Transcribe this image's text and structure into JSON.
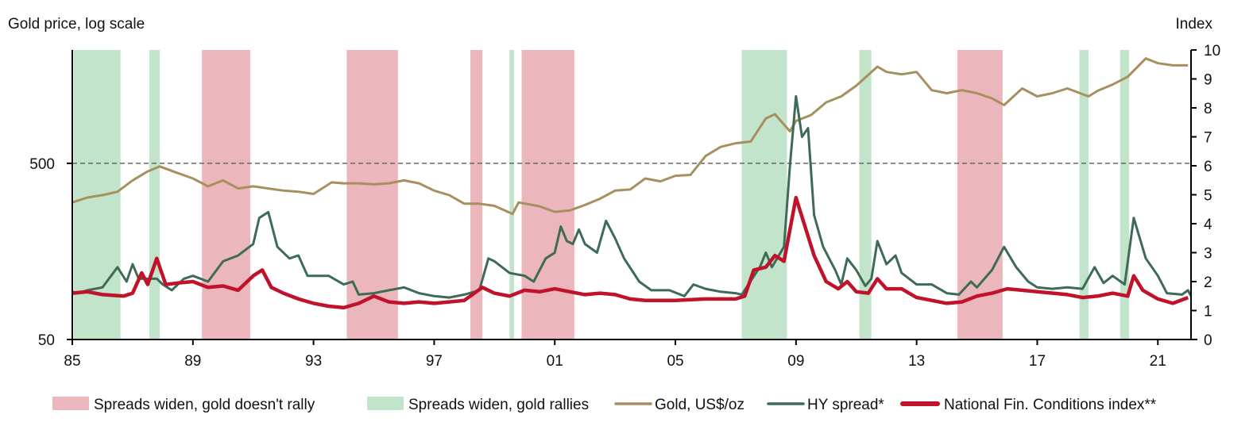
{
  "chart_data": {
    "type": "line",
    "left_axis_title": "Gold price, log scale",
    "right_axis_title": "Index",
    "left_axis": {
      "scale": "log",
      "ylim": [
        50,
        2200
      ],
      "ticks": [
        50,
        500
      ],
      "tick_labels": [
        "50",
        "500"
      ]
    },
    "right_axis": {
      "scale": "linear",
      "ylim": [
        0,
        10
      ],
      "ticks": [
        0,
        1,
        2,
        3,
        4,
        5,
        6,
        7,
        8,
        9,
        10
      ],
      "tick_labels": [
        "0",
        "1",
        "2",
        "3",
        "4",
        "5",
        "6",
        "7",
        "8",
        "9",
        "10"
      ]
    },
    "xlim": [
      1985,
      2022.1
    ],
    "x_ticks": [
      1985,
      1989,
      1993,
      1997,
      2001,
      2005,
      2009,
      2013,
      2017,
      2021
    ],
    "x_tick_labels": [
      "85",
      "89",
      "93",
      "97",
      "01",
      "05",
      "09",
      "13",
      "17",
      "21"
    ],
    "reference_line": {
      "axis": "left",
      "value": 500,
      "style": "dashed",
      "color": "#666666"
    },
    "grid": false,
    "legend_placement": "bottom",
    "bands": [
      {
        "name": "Spreads widen, gold doesn't rally",
        "color": "#EBB7BC",
        "ranges": [
          [
            1989.3,
            1990.9
          ],
          [
            1994.1,
            1995.8
          ],
          [
            1998.2,
            1998.6
          ],
          [
            1999.9,
            2001.65
          ],
          [
            2014.35,
            2015.85
          ]
        ]
      },
      {
        "name": "Spreads widen, gold rallies",
        "color": "#C2E4CB",
        "ranges": [
          [
            1985.05,
            1986.6
          ],
          [
            1987.55,
            1987.9
          ],
          [
            1999.5,
            1999.65
          ],
          [
            2007.2,
            2008.7
          ],
          [
            2011.1,
            2011.5
          ],
          [
            2018.4,
            2018.7
          ],
          [
            2019.75,
            2020.05
          ]
        ]
      }
    ],
    "series": [
      {
        "name": "Gold, US$/oz",
        "axis": "left",
        "color": "#A69060",
        "x": [
          1985.0,
          1985.5,
          1986.0,
          1986.5,
          1987.0,
          1987.5,
          1987.9,
          1988.5,
          1989.0,
          1989.5,
          1990.0,
          1990.5,
          1991.0,
          1991.5,
          1992.0,
          1992.5,
          1993.0,
          1993.6,
          1994.0,
          1994.5,
          1995.0,
          1995.5,
          1996.0,
          1996.5,
          1997.0,
          1997.5,
          1998.0,
          1998.5,
          1999.0,
          1999.6,
          1999.8,
          2000.5,
          2001.0,
          2001.5,
          2002.0,
          2002.5,
          2003.0,
          2003.5,
          2004.0,
          2004.5,
          2005.0,
          2005.5,
          2006.0,
          2006.5,
          2007.0,
          2007.5,
          2008.0,
          2008.3,
          2008.8,
          2009.0,
          2009.5,
          2010.0,
          2010.5,
          2011.0,
          2011.7,
          2012.0,
          2012.5,
          2013.0,
          2013.5,
          2014.0,
          2014.5,
          2015.0,
          2015.5,
          2015.9,
          2016.5,
          2017.0,
          2017.5,
          2018.0,
          2018.7,
          2019.0,
          2019.5,
          2020.0,
          2020.6,
          2021.0,
          2021.5,
          2022.0
        ],
        "values": [
          300,
          320,
          330,
          345,
          400,
          450,
          480,
          440,
          410,
          370,
          400,
          360,
          370,
          360,
          350,
          345,
          335,
          390,
          385,
          385,
          380,
          385,
          400,
          385,
          350,
          330,
          295,
          295,
          287,
          258,
          300,
          285,
          265,
          270,
          290,
          315,
          350,
          355,
          410,
          395,
          425,
          430,
          550,
          620,
          650,
          665,
          900,
          950,
          760,
          870,
          940,
          1110,
          1200,
          1380,
          1770,
          1650,
          1600,
          1650,
          1300,
          1250,
          1300,
          1250,
          1170,
          1070,
          1330,
          1200,
          1250,
          1330,
          1200,
          1290,
          1400,
          1550,
          1970,
          1850,
          1800,
          1800
        ]
      },
      {
        "name": "HY spread*",
        "axis": "right",
        "color": "#3E6B58",
        "x": [
          1985.0,
          1985.2,
          1985.5,
          1986.0,
          1986.5,
          1986.8,
          1987.0,
          1987.2,
          1987.8,
          1988.0,
          1988.3,
          1988.7,
          1989.0,
          1989.5,
          1990.0,
          1990.5,
          1991.0,
          1991.2,
          1991.5,
          1991.8,
          1992.2,
          1992.5,
          1992.8,
          1993.5,
          1994.0,
          1994.3,
          1994.5,
          1995.0,
          1995.5,
          1996.0,
          1996.5,
          1997.0,
          1997.5,
          1998.0,
          1998.5,
          1998.8,
          1999.0,
          1999.5,
          2000.0,
          2000.3,
          2000.7,
          2001.0,
          2001.2,
          2001.4,
          2001.6,
          2001.8,
          2002.0,
          2002.4,
          2002.7,
          2003.0,
          2003.3,
          2003.8,
          2004.2,
          2004.8,
          2005.3,
          2005.6,
          2006.0,
          2006.5,
          2007.0,
          2007.2,
          2007.8,
          2008.0,
          2008.2,
          2008.6,
          2008.8,
          2009.0,
          2009.2,
          2009.4,
          2009.6,
          2009.9,
          2010.3,
          2010.5,
          2010.7,
          2011.0,
          2011.3,
          2011.5,
          2011.7,
          2012.0,
          2012.3,
          2012.5,
          2013.0,
          2013.5,
          2014.0,
          2014.4,
          2014.8,
          2015.0,
          2015.5,
          2015.9,
          2016.3,
          2016.7,
          2017.0,
          2017.5,
          2018.0,
          2018.5,
          2018.9,
          2019.2,
          2019.5,
          2019.9,
          2020.2,
          2020.6,
          2021.0,
          2021.3,
          2021.8,
          2022.0,
          2022.1
        ],
        "values": [
          1.65,
          1.6,
          1.7,
          1.8,
          2.5,
          2.0,
          2.6,
          2.1,
          2.1,
          1.9,
          1.7,
          2.1,
          2.2,
          2.0,
          2.7,
          2.9,
          3.3,
          4.2,
          4.4,
          3.2,
          2.8,
          2.9,
          2.2,
          2.2,
          1.9,
          2.0,
          1.55,
          1.6,
          1.7,
          1.8,
          1.6,
          1.5,
          1.45,
          1.55,
          1.7,
          2.8,
          2.7,
          2.3,
          2.2,
          2.0,
          2.8,
          3.0,
          3.9,
          3.4,
          3.3,
          3.8,
          3.3,
          3.0,
          4.1,
          3.5,
          2.8,
          2.0,
          1.7,
          1.7,
          1.5,
          1.9,
          1.75,
          1.65,
          1.6,
          1.55,
          2.5,
          3.0,
          2.5,
          3.2,
          6.0,
          8.4,
          7.0,
          7.3,
          4.3,
          3.2,
          2.4,
          1.9,
          2.8,
          2.4,
          1.85,
          2.1,
          3.4,
          2.6,
          2.9,
          2.3,
          1.9,
          1.9,
          1.6,
          1.55,
          2.0,
          1.8,
          2.4,
          3.2,
          2.5,
          2.0,
          1.8,
          1.75,
          1.8,
          1.75,
          2.5,
          1.95,
          2.2,
          1.9,
          4.2,
          2.8,
          2.2,
          1.6,
          1.55,
          1.7,
          1.5
        ]
      },
      {
        "name": "National Fin. Conditions index**",
        "axis": "right",
        "color": "#C0122B",
        "x": [
          1985.0,
          1985.5,
          1986.0,
          1986.7,
          1987.0,
          1987.3,
          1987.5,
          1987.8,
          1988.1,
          1988.5,
          1989.0,
          1989.5,
          1990.0,
          1990.5,
          1991.0,
          1991.3,
          1991.6,
          1992.0,
          1992.5,
          1993.0,
          1993.5,
          1994.0,
          1994.5,
          1995.0,
          1995.5,
          1996.0,
          1996.5,
          1997.0,
          1997.5,
          1998.0,
          1998.6,
          1999.0,
          1999.5,
          2000.0,
          2000.5,
          2001.0,
          2001.5,
          2002.0,
          2002.5,
          2003.0,
          2003.5,
          2004.0,
          2005.0,
          2006.0,
          2007.0,
          2007.3,
          2007.6,
          2008.0,
          2008.3,
          2008.6,
          2009.0,
          2009.3,
          2009.6,
          2010.0,
          2010.4,
          2010.7,
          2011.0,
          2011.4,
          2011.7,
          2012.0,
          2012.5,
          2013.0,
          2013.5,
          2014.0,
          2014.5,
          2015.0,
          2015.5,
          2016.0,
          2016.5,
          2017.0,
          2018.0,
          2018.5,
          2019.0,
          2019.5,
          2020.0,
          2020.2,
          2020.5,
          2021.0,
          2021.5,
          2022.0
        ],
        "values": [
          1.6,
          1.65,
          1.55,
          1.5,
          1.6,
          2.3,
          1.9,
          2.8,
          1.9,
          1.95,
          2.0,
          1.8,
          1.85,
          1.7,
          2.2,
          2.4,
          1.8,
          1.6,
          1.4,
          1.25,
          1.15,
          1.1,
          1.25,
          1.5,
          1.3,
          1.25,
          1.3,
          1.25,
          1.3,
          1.35,
          1.8,
          1.6,
          1.5,
          1.7,
          1.65,
          1.75,
          1.65,
          1.55,
          1.6,
          1.55,
          1.4,
          1.35,
          1.35,
          1.4,
          1.4,
          1.5,
          2.4,
          2.5,
          2.9,
          2.7,
          4.9,
          3.9,
          2.9,
          2.0,
          1.75,
          2.0,
          1.65,
          1.6,
          2.1,
          1.75,
          1.75,
          1.45,
          1.35,
          1.25,
          1.3,
          1.5,
          1.6,
          1.75,
          1.7,
          1.65,
          1.55,
          1.45,
          1.5,
          1.6,
          1.5,
          2.2,
          1.7,
          1.4,
          1.25,
          1.45
        ]
      }
    ]
  }
}
